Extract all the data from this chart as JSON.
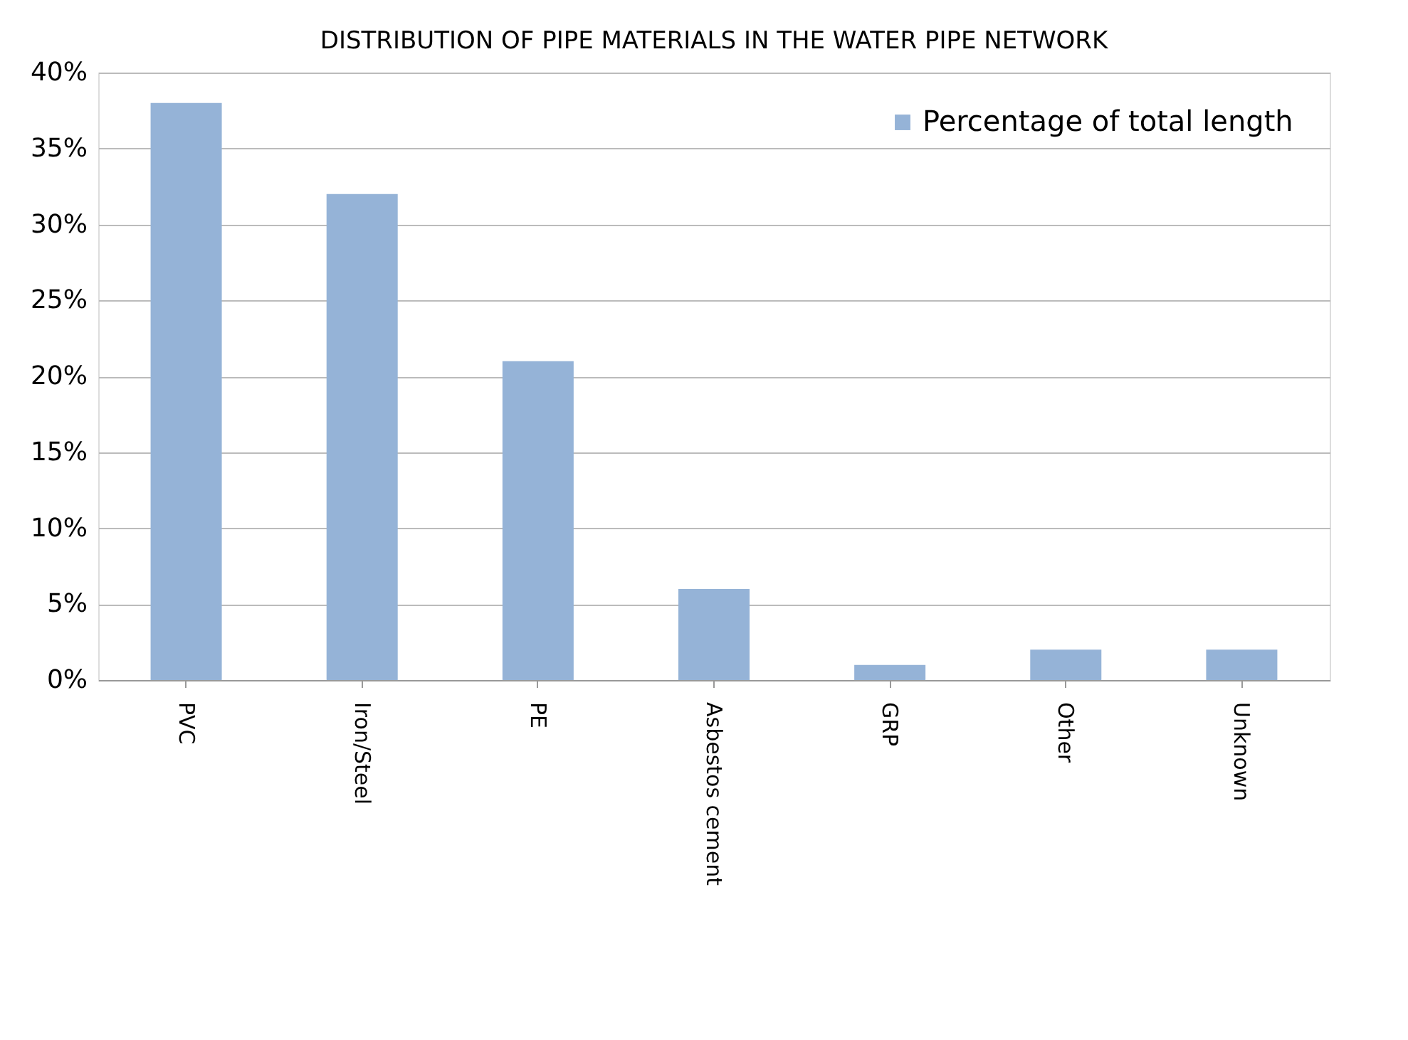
{
  "chart_data": {
    "type": "bar",
    "title": "DISTRIBUTION OF PIPE MATERIALS IN THE WATER PIPE NETWORK",
    "categories": [
      "PVC",
      "Iron/Steel",
      "PE",
      "Asbestos cement",
      "GRP",
      "Other",
      "Unknown"
    ],
    "series": [
      {
        "name": "Percentage of total length",
        "color": "#95b3d7",
        "values": [
          38,
          32,
          21,
          6,
          1,
          2,
          2
        ]
      }
    ],
    "ylim": [
      0,
      40
    ],
    "yticks": [
      {
        "value": 0,
        "label": "0%"
      },
      {
        "value": 5,
        "label": "5%"
      },
      {
        "value": 10,
        "label": "10%"
      },
      {
        "value": 15,
        "label": "15%"
      },
      {
        "value": 20,
        "label": "20%"
      },
      {
        "value": 25,
        "label": "25%"
      },
      {
        "value": 30,
        "label": "30%"
      },
      {
        "value": 35,
        "label": "35%"
      },
      {
        "value": 40,
        "label": "40%"
      }
    ],
    "grid": "y",
    "legend": "top right"
  }
}
